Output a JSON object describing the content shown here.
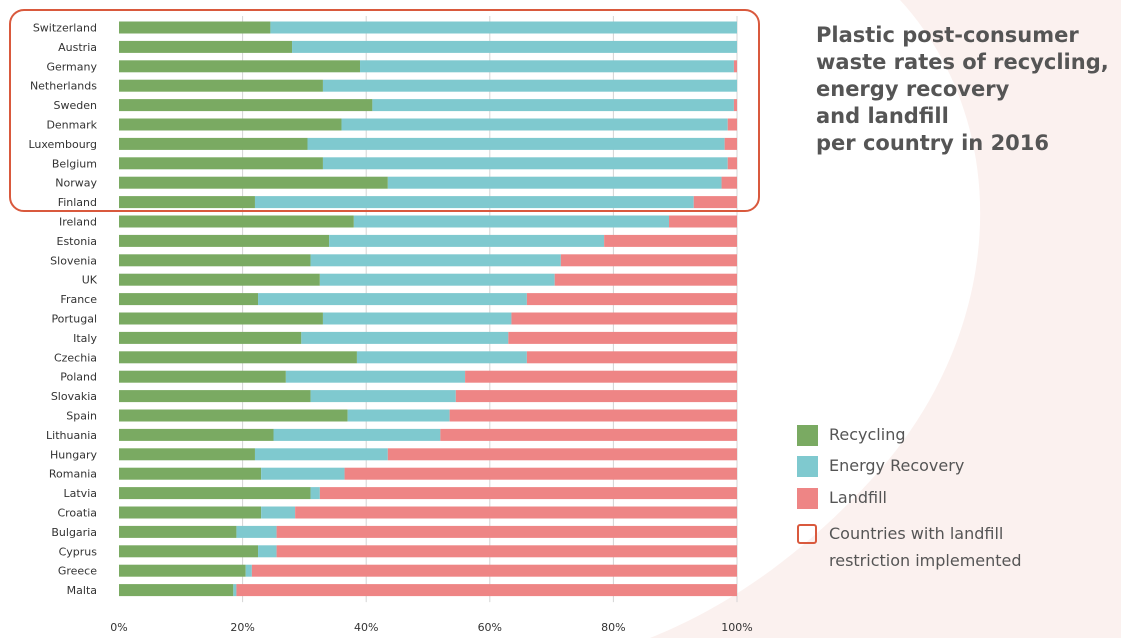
{
  "colors": {
    "recycling": "#7aaa62",
    "energy_recovery": "#7fc9cf",
    "landfill": "#ee8585",
    "highlight": "#d9593d",
    "background_swoosh": "#fbf1ef"
  },
  "title_lines": [
    "Plastic post-consumer",
    "waste rates of recycling,",
    "energy recovery",
    "and landfill",
    "per country in 2016"
  ],
  "legend": {
    "recycling": "Recycling",
    "energy_recovery": "Energy Recovery",
    "landfill": "Landfill",
    "restriction_line1": "Countries with landfill",
    "restriction_line2": "restriction implemented"
  },
  "chart_data": {
    "type": "bar",
    "orientation": "horizontal",
    "stacked": true,
    "title": "Plastic post-consumer waste rates of recycling, energy recovery and landfill per country in 2016",
    "xlim": [
      0,
      100
    ],
    "ticks": [
      "0%",
      "20%",
      "40%",
      "60%",
      "80%",
      "100%"
    ],
    "grid": true,
    "legend_position": "right",
    "categories": [
      "Switzerland",
      "Austria",
      "Germany",
      "Netherlands",
      "Sweden",
      "Denmark",
      "Luxembourg",
      "Belgium",
      "Norway",
      "Finland",
      "Ireland",
      "Estonia",
      "Slovenia",
      "UK",
      "France",
      "Portugal",
      "Italy",
      "Czechia",
      "Poland",
      "Slovakia",
      "Spain",
      "Lithuania",
      "Hungary",
      "Romania",
      "Latvia",
      "Croatia",
      "Bulgaria",
      "Cyprus",
      "Greece",
      "Malta"
    ],
    "series": [
      {
        "name": "Recycling",
        "values": [
          24.5,
          28,
          39,
          33,
          41,
          36,
          30.5,
          33,
          43.5,
          22,
          38,
          34,
          31,
          32.5,
          22.5,
          33,
          29.5,
          38.5,
          27,
          31,
          37,
          25,
          22,
          23,
          31,
          23,
          19,
          22.5,
          20.5,
          18.5
        ]
      },
      {
        "name": "Energy Recovery",
        "values": [
          75.5,
          72,
          60.5,
          67,
          58.5,
          62.5,
          67.5,
          65.5,
          54,
          71,
          51,
          44.5,
          40.5,
          38,
          43.5,
          30.5,
          33.5,
          27.5,
          29,
          23.5,
          16.5,
          27,
          21.5,
          13.5,
          1.5,
          5.5,
          6.5,
          3,
          1,
          0.5
        ]
      },
      {
        "name": "Landfill",
        "values": [
          0,
          0,
          0.5,
          0,
          0.5,
          1.5,
          2,
          1.5,
          2.5,
          7,
          11,
          21.5,
          28.5,
          29.5,
          34,
          36.5,
          37,
          34,
          44,
          45.5,
          46.5,
          48,
          56.5,
          63.5,
          67.5,
          71.5,
          74.5,
          74.5,
          78.5,
          81
        ]
      }
    ],
    "highlighted_group": {
      "label": "Countries with landfill restriction implemented",
      "countries": [
        "Switzerland",
        "Austria",
        "Germany",
        "Netherlands",
        "Sweden",
        "Denmark",
        "Luxembourg",
        "Belgium",
        "Norway",
        "Finland"
      ]
    }
  }
}
